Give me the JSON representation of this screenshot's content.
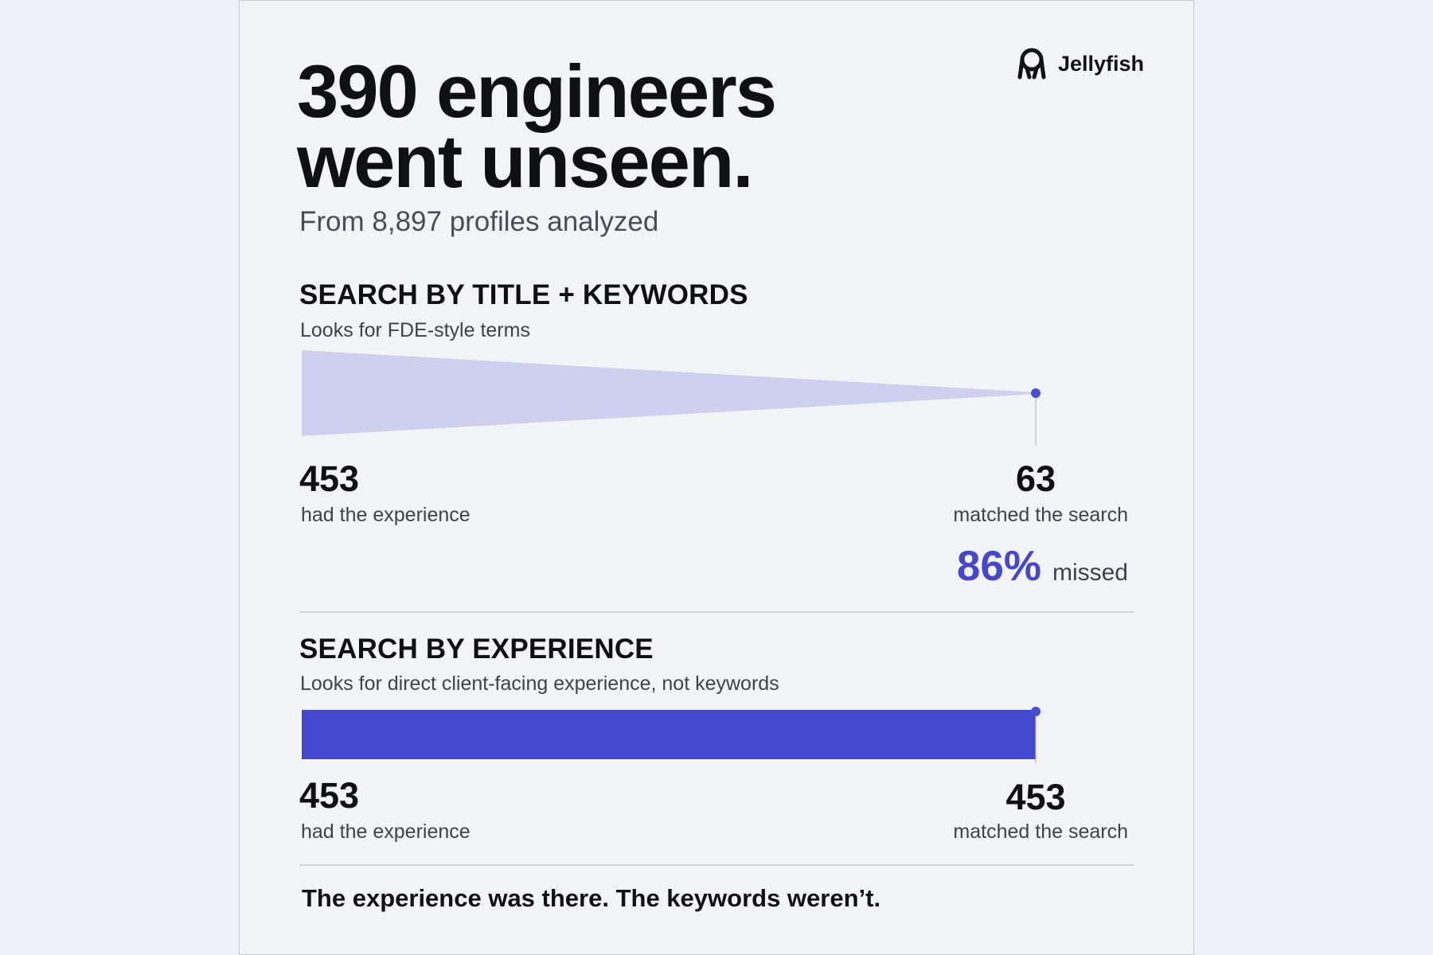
{
  "brand": {
    "name": "Jellyfish",
    "icon": "jellyfish-logo-icon"
  },
  "headline": {
    "line1": "390 engineers",
    "line2": "went unseen."
  },
  "subhead": "From 8,897 profiles analyzed",
  "sections": [
    {
      "title": "SEARCH BY TITLE + KEYWORDS",
      "description": "Looks for FDE-style terms",
      "start_value": "453",
      "start_label": "had the experience",
      "end_value": "63",
      "end_label": "matched the search",
      "missed_pct": "86%",
      "missed_label": "missed"
    },
    {
      "title": "SEARCH BY EXPERIENCE",
      "description": "Looks for direct client-facing experience, not keywords",
      "start_value": "453",
      "start_label": "had the experience",
      "end_value": "453",
      "end_label": "matched the search"
    }
  ],
  "footer": "The experience was there. The keywords weren’t.",
  "colors": {
    "accent": "#4549c8",
    "funnel_fill": "#cfd0ee",
    "bar_fill": "#4348cf",
    "marker": "#4a4ec9"
  },
  "chart_data": [
    {
      "type": "funnel",
      "title": "SEARCH BY TITLE + KEYWORDS",
      "start": {
        "label": "had the experience",
        "value": 453
      },
      "end": {
        "label": "matched the search",
        "value": 63
      },
      "missed_percent": 86
    },
    {
      "type": "bar",
      "title": "SEARCH BY EXPERIENCE",
      "start": {
        "label": "had the experience",
        "value": 453
      },
      "end": {
        "label": "matched the search",
        "value": 453
      }
    }
  ]
}
